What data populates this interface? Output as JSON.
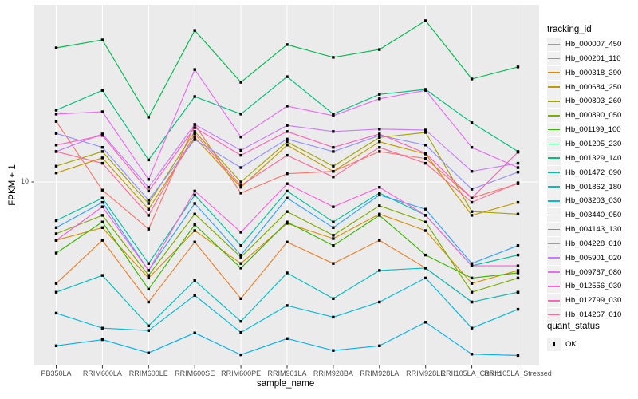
{
  "figure": {
    "y_axis": {
      "title": "FPKM + 1",
      "tick_label": "10"
    },
    "x_axis": {
      "title": "sample_name"
    },
    "legend": {
      "tracking_title": "tracking_id",
      "quant_title": "quant_status",
      "quant_item_label": "OK"
    },
    "colors": {
      "panel_bg": "#ebebeb",
      "grid": "#ffffff",
      "tick_mark": "#333333",
      "tick_text": "#4d4d4d",
      "point": "#000000",
      "legend_key_bg": "#f0f0f0"
    }
  },
  "chart_data": {
    "type": "line",
    "title": "",
    "xlabel": "sample_name",
    "ylabel": "FPKM + 1",
    "y_scale": "log10",
    "y_ticks": [
      10
    ],
    "ylim_approx": [
      1.3,
      70
    ],
    "grid": true,
    "legend_position": "right",
    "point_shape": "filled-square",
    "quant_status_values": [
      "OK"
    ],
    "categories": [
      "PB350LA",
      "RRIM600LA",
      "RRIM600LE",
      "RRIM600SE",
      "RRIM600PE",
      "RRIM901LA",
      "RRIM928BA",
      "RRIM928LA",
      "RRIM928LE",
      "RRII105LA_Control",
      "RRII105LA_Stressed"
    ],
    "series": [
      {
        "name": "Hb_000007_450",
        "color": "#F8766D",
        "values": [
          20.1,
          9.1,
          5.8,
          19.4,
          8.8,
          11.0,
          11.3,
          14.2,
          13.1,
          8.3,
          9.8
        ]
      },
      {
        "name": "Hb_000201_110",
        "color": "#EA8331",
        "values": [
          3.1,
          5.1,
          2.5,
          5.0,
          2.6,
          5.0,
          3.9,
          5.1,
          3.7,
          2.5,
          2.8
        ]
      },
      {
        "name": "Hb_000318_390",
        "color": "#D89000",
        "values": [
          5.1,
          5.9,
          3.3,
          5.7,
          3.9,
          6.2,
          5.2,
          6.9,
          5.7,
          3.1,
          3.6
        ]
      },
      {
        "name": "Hb_000684_250",
        "color": "#C09B00",
        "values": [
          11.1,
          13.2,
          7.3,
          16.7,
          9.4,
          15.3,
          11.3,
          15.9,
          13.8,
          6.8,
          7.9
        ]
      },
      {
        "name": "Hb_000803_260",
        "color": "#A3A500",
        "values": [
          12.0,
          14.2,
          7.8,
          17.9,
          10.0,
          15.9,
          12.0,
          16.7,
          17.7,
          7.1,
          6.9
        ]
      },
      {
        "name": "Hb_000890_050",
        "color": "#7CAE00",
        "values": [
          5.5,
          6.8,
          3.4,
          6.9,
          4.2,
          7.1,
          5.4,
          7.6,
          6.3,
          2.8,
          3.3
        ]
      },
      {
        "name": "Hb_001199_100",
        "color": "#39B600",
        "values": [
          4.4,
          6.3,
          2.9,
          6.1,
          3.7,
          6.3,
          4.8,
          6.8,
          4.3,
          3.3,
          3.5
        ]
      },
      {
        "name": "Hb_001205_230",
        "color": "#00BB4E",
        "values": [
          47.0,
          51.5,
          21.1,
          57.5,
          31.6,
          48.8,
          42.1,
          46.1,
          64.3,
          32.8,
          37.7
        ]
      },
      {
        "name": "Hb_001329_140",
        "color": "#00BF7D",
        "values": [
          22.9,
          28.8,
          12.9,
          26.8,
          21.9,
          33.7,
          21.9,
          27.5,
          29.1,
          19.8,
          14.2
        ]
      },
      {
        "name": "Hb_001472_090",
        "color": "#00C1A3",
        "values": [
          6.4,
          8.3,
          3.9,
          8.6,
          4.8,
          9.0,
          6.3,
          8.8,
          6.8,
          3.8,
          4.3
        ]
      },
      {
        "name": "Hb_001862_180",
        "color": "#00BFC4",
        "values": [
          2.8,
          3.4,
          1.9,
          3.2,
          2.0,
          3.5,
          2.6,
          3.6,
          3.7,
          2.5,
          2.8
        ]
      },
      {
        "name": "Hb_003203_030",
        "color": "#00BAE0",
        "values": [
          2.2,
          1.85,
          1.8,
          2.7,
          1.76,
          2.4,
          2.1,
          2.5,
          3.3,
          1.85,
          2.3
        ]
      },
      {
        "name": "Hb_003440_050",
        "color": "#00B0F6",
        "values": [
          1.51,
          1.62,
          1.39,
          1.75,
          1.36,
          1.64,
          1.43,
          1.51,
          1.98,
          1.37,
          1.35
        ]
      },
      {
        "name": "Hb_004143_130",
        "color": "#35A2FF",
        "values": [
          5.9,
          7.9,
          3.6,
          7.8,
          4.3,
          8.3,
          5.9,
          8.6,
          7.3,
          3.9,
          4.8
        ]
      },
      {
        "name": "Hb_004228_010",
        "color": "#9590FF",
        "values": [
          17.5,
          14.9,
          8.1,
          16.3,
          11.8,
          16.4,
          14.2,
          17.1,
          15.3,
          9.2,
          11.2
        ]
      },
      {
        "name": "Hb_005901_020",
        "color": "#C77CFF",
        "values": [
          14.2,
          17.4,
          9.4,
          19.4,
          14.4,
          19.2,
          17.9,
          18.4,
          18.2,
          11.3,
          12.4
        ]
      },
      {
        "name": "Hb_009767_080",
        "color": "#E76BF3",
        "values": [
          21.9,
          22.5,
          10.3,
          36.6,
          16.8,
          24.0,
          21.5,
          26.1,
          28.8,
          14.9,
          11.8
        ]
      },
      {
        "name": "Hb_012556_030",
        "color": "#FA62DB",
        "values": [
          5.1,
          7.5,
          3.6,
          9.0,
          5.6,
          9.8,
          7.5,
          9.4,
          6.8,
          3.8,
          3.8
        ]
      },
      {
        "name": "Hb_012799_030",
        "color": "#FF62BC",
        "values": [
          15.3,
          17.1,
          9.0,
          18.7,
          13.6,
          17.9,
          14.9,
          17.4,
          13.9,
          8.3,
          14.1
        ]
      },
      {
        "name": "Hb_014267_010",
        "color": "#FF6A98",
        "values": [
          14.2,
          12.4,
          6.8,
          17.4,
          9.6,
          13.6,
          10.6,
          14.9,
          12.4,
          7.9,
          9.9
        ]
      }
    ]
  }
}
